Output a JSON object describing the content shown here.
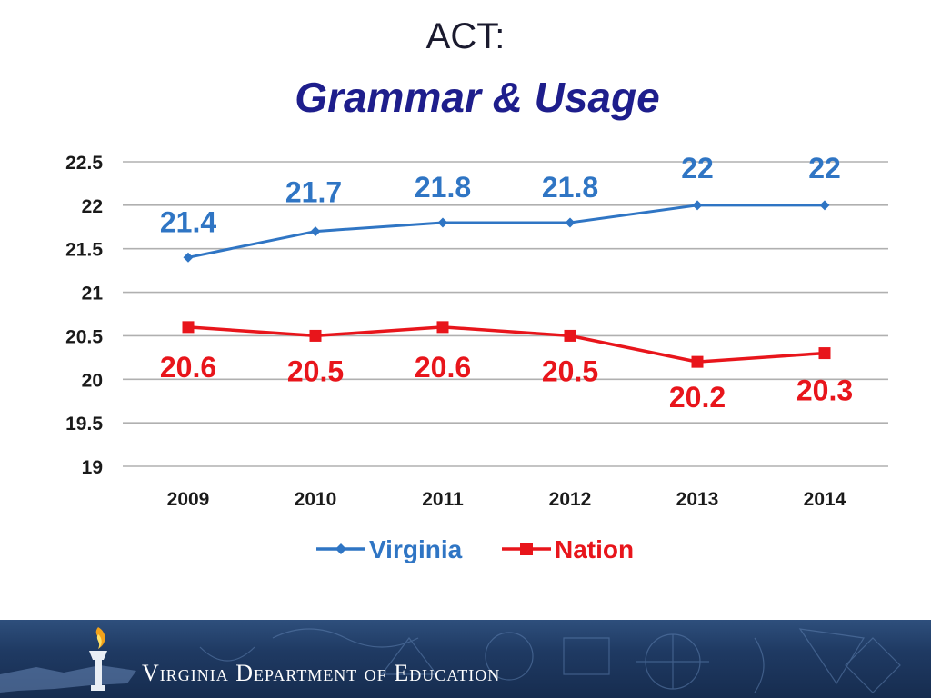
{
  "title": {
    "line1": "ACT:",
    "line2": "Grammar & Usage"
  },
  "footer": {
    "org_name": "Virginia Department of Education",
    "logo_icon": "torch-icon"
  },
  "colors": {
    "virginia": "#2f75c4",
    "nation": "#e8151b",
    "grid": "#b0b0b0",
    "axis_text": "#1a1a1a"
  },
  "chart_data": {
    "type": "line",
    "categories": [
      "2009",
      "2010",
      "2011",
      "2012",
      "2013",
      "2014"
    ],
    "ylim": [
      19,
      22.5
    ],
    "yticks": [
      19,
      19.5,
      20,
      20.5,
      21,
      21.5,
      22,
      22.5
    ],
    "ytick_labels": [
      "19",
      "19.5",
      "20",
      "20.5",
      "21",
      "21.5",
      "22",
      "22.5"
    ],
    "grid": true,
    "legend_position": "bottom-center",
    "series": [
      {
        "name": "Virginia",
        "marker": "diamond",
        "values": [
          21.4,
          21.7,
          21.8,
          21.8,
          22,
          22
        ],
        "labels": [
          "21.4",
          "21.7",
          "21.8",
          "21.8",
          "22",
          "22"
        ]
      },
      {
        "name": "Nation",
        "marker": "square",
        "values": [
          20.6,
          20.5,
          20.6,
          20.5,
          20.2,
          20.3
        ],
        "labels": [
          "20.6",
          "20.5",
          "20.6",
          "20.5",
          "20.2",
          "20.3"
        ]
      }
    ]
  }
}
